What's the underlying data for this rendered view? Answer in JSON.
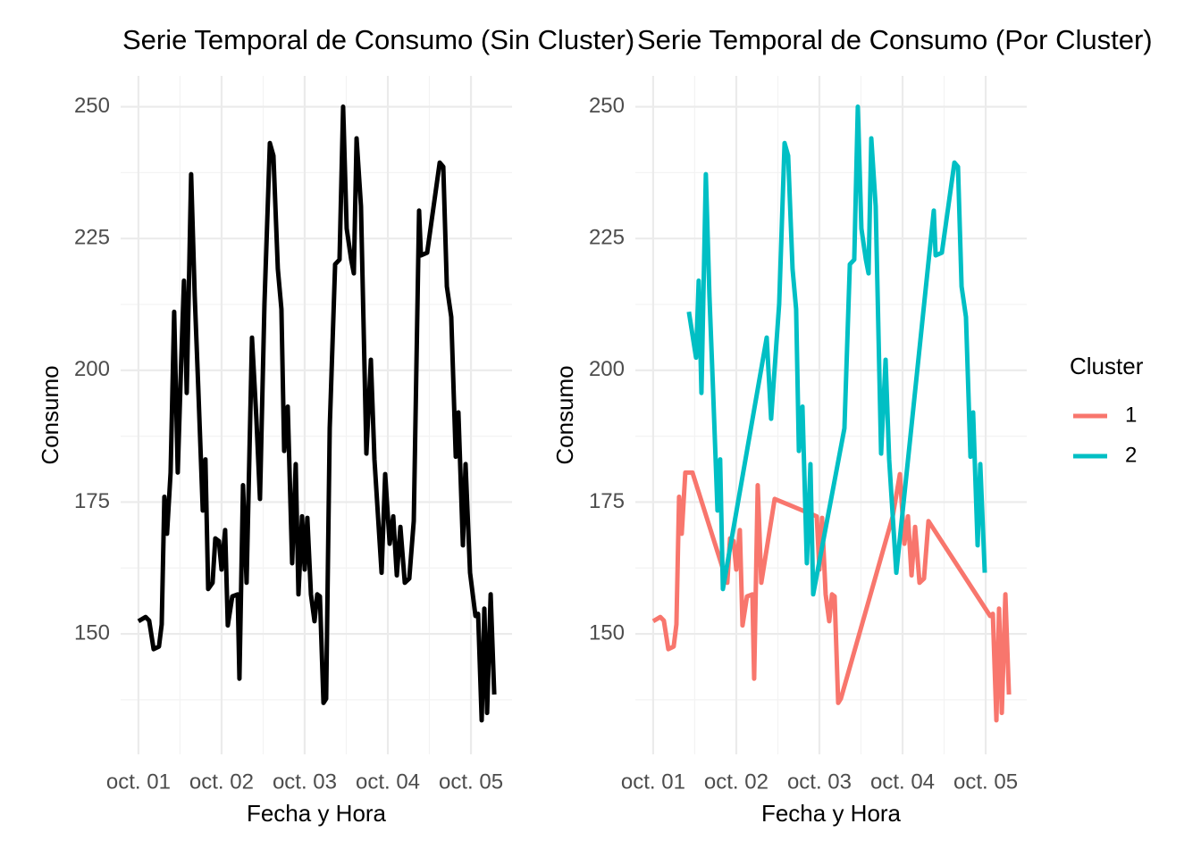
{
  "chart_data": [
    {
      "type": "line",
      "title": "Serie Temporal de Consumo (Sin Cluster)",
      "x_label": "Fecha y Hora",
      "y_label": "Consumo",
      "x": [
        0,
        0.086,
        0.129,
        0.183,
        0.247,
        0.28,
        0.312,
        0.344,
        0.387,
        0.43,
        0.473,
        0.516,
        0.548,
        0.581,
        0.634,
        0.677,
        0.72,
        0.774,
        0.806,
        0.839,
        0.892,
        0.925,
        0.968,
        1,
        1.043,
        1.075,
        1.129,
        1.194,
        1.215,
        1.258,
        1.301,
        1.366,
        1.419,
        1.462,
        1.516,
        1.581,
        1.624,
        1.677,
        1.72,
        1.753,
        1.796,
        1.849,
        1.892,
        1.925,
        1.968,
        2,
        2.032,
        2.075,
        2.118,
        2.151,
        2.183,
        2.226,
        2.258,
        2.301,
        2.366,
        2.419,
        2.462,
        2.505,
        2.559,
        2.591,
        2.624,
        2.677,
        2.742,
        2.796,
        2.839,
        2.882,
        2.925,
        2.968,
        3.022,
        3.065,
        3.108,
        3.151,
        3.204,
        3.258,
        3.312,
        3.376,
        3.398,
        3.473,
        3.624,
        3.667,
        3.71,
        3.763,
        3.817,
        3.849,
        3.903,
        3.935,
        3.989,
        4.054,
        4.086,
        4.129,
        4.161,
        4.194,
        4.237,
        4.28
      ],
      "values": [
        152.4,
        153.2,
        152.5,
        147.1,
        147.6,
        151.8,
        176,
        169,
        180.6,
        211.1,
        180.6,
        202.4,
        217,
        195.7,
        237.2,
        214.2,
        196.6,
        173.4,
        183.1,
        158.5,
        159.7,
        168.1,
        167.6,
        162.2,
        169.7,
        151.6,
        157.1,
        157.5,
        141.5,
        178.2,
        159.7,
        206.2,
        190.8,
        175.6,
        212.6,
        243.1,
        240.7,
        219.2,
        211.6,
        184.7,
        193.1,
        163.4,
        182.2,
        157.5,
        172.3,
        162.2,
        172,
        157.5,
        152.4,
        157.5,
        157.1,
        136.9,
        137.7,
        189,
        220.1,
        221,
        250,
        226.9,
        221,
        218.4,
        244,
        231.1,
        184.2,
        202,
        183.1,
        172.3,
        161.6,
        180.3,
        167.1,
        172.3,
        161.1,
        170.3,
        159.7,
        160.5,
        171.4,
        230.3,
        221.8,
        222.3,
        239.4,
        238.6,
        215.9,
        210.1,
        183.6,
        192,
        166.8,
        182.2,
        161.6,
        153.4,
        153.8,
        133.6,
        154.8,
        135,
        157.5,
        138.5
      ],
      "color": "#000000",
      "xlim": [
        -0.214,
        4.494
      ],
      "ylim": [
        127.15,
        255.85
      ],
      "xticks": [
        {
          "value": 0,
          "label": "oct. 01"
        },
        {
          "value": 1,
          "label": "oct. 02"
        },
        {
          "value": 2,
          "label": "oct. 03"
        },
        {
          "value": 3,
          "label": "oct. 04"
        },
        {
          "value": 4,
          "label": "oct. 05"
        }
      ],
      "yticks": [
        150,
        175,
        200,
        225,
        250
      ],
      "grid": true
    },
    {
      "type": "line",
      "title": "Serie Temporal de Consumo (Por Cluster)",
      "x_label": "Fecha y Hora",
      "y_label": "Consumo",
      "legend_title": "Cluster",
      "legend_position": "right",
      "series": [
        {
          "name": "1",
          "color": "#F8766D",
          "x": [
            0,
            0.086,
            0.129,
            0.183,
            0.247,
            0.28,
            0.312,
            0.344,
            0.387,
            0.473,
            0.892,
            0.925,
            0.968,
            1,
            1.043,
            1.075,
            1.129,
            1.194,
            1.215,
            1.258,
            1.301,
            1.462,
            1.968,
            2,
            2.032,
            2.075,
            2.118,
            2.151,
            2.183,
            2.226,
            2.258,
            2.882,
            2.968,
            3.022,
            3.065,
            3.108,
            3.151,
            3.204,
            3.258,
            3.312,
            4.054,
            4.086,
            4.129,
            4.161,
            4.194,
            4.237,
            4.28
          ],
          "values": [
            152.4,
            153.2,
            152.5,
            147.1,
            147.6,
            151.8,
            176,
            169,
            180.6,
            180.6,
            159.7,
            168.1,
            167.6,
            162.2,
            169.7,
            151.6,
            157.1,
            157.5,
            141.5,
            178.2,
            159.7,
            175.6,
            172.3,
            162.2,
            172,
            157.5,
            152.4,
            157.5,
            157.1,
            136.9,
            137.7,
            172.3,
            180.3,
            167.1,
            172.3,
            161.1,
            170.3,
            159.7,
            160.5,
            171.4,
            153.4,
            153.8,
            133.6,
            154.8,
            135,
            157.5,
            138.5
          ]
        },
        {
          "name": "2",
          "color": "#00BFC4",
          "x": [
            0.43,
            0.516,
            0.548,
            0.581,
            0.634,
            0.677,
            0.72,
            0.774,
            0.806,
            0.839,
            1.366,
            1.419,
            1.516,
            1.581,
            1.624,
            1.677,
            1.72,
            1.753,
            1.796,
            1.849,
            1.892,
            1.925,
            2.301,
            2.366,
            2.419,
            2.462,
            2.505,
            2.559,
            2.591,
            2.624,
            2.677,
            2.742,
            2.796,
            2.839,
            2.925,
            3.376,
            3.398,
            3.473,
            3.624,
            3.667,
            3.71,
            3.763,
            3.817,
            3.849,
            3.903,
            3.935,
            3.989
          ],
          "values": [
            211.1,
            202.4,
            217,
            195.7,
            237.2,
            214.2,
            196.6,
            173.4,
            183.1,
            158.5,
            206.2,
            190.8,
            212.6,
            243.1,
            240.7,
            219.2,
            211.6,
            184.7,
            193.1,
            163.4,
            182.2,
            157.5,
            189,
            220.1,
            221,
            250,
            226.9,
            221,
            218.4,
            244,
            231.1,
            184.2,
            202,
            183.1,
            161.6,
            230.3,
            221.8,
            222.3,
            239.4,
            238.6,
            215.9,
            210.1,
            183.6,
            192,
            166.8,
            182.2,
            161.6
          ]
        }
      ],
      "xlim": [
        -0.214,
        4.494
      ],
      "ylim": [
        127.15,
        255.85
      ],
      "xticks": [
        {
          "value": 0,
          "label": "oct. 01"
        },
        {
          "value": 1,
          "label": "oct. 02"
        },
        {
          "value": 2,
          "label": "oct. 03"
        },
        {
          "value": 3,
          "label": "oct. 04"
        },
        {
          "value": 4,
          "label": "oct. 05"
        }
      ],
      "yticks": [
        150,
        175,
        200,
        225,
        250
      ],
      "grid": true
    }
  ]
}
